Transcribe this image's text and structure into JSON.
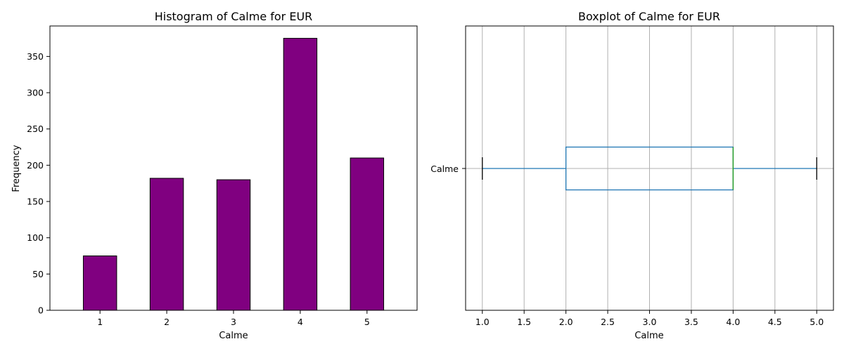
{
  "chart_data": [
    {
      "type": "bar",
      "title": "Histogram of Calme for EUR",
      "xlabel": "Calme",
      "ylabel": "Frequency",
      "categories": [
        "1",
        "2",
        "3",
        "4",
        "5"
      ],
      "values": [
        75,
        182,
        180,
        375,
        210
      ],
      "ylim": [
        0,
        392
      ],
      "yticks": [
        0,
        50,
        100,
        150,
        200,
        250,
        300,
        350
      ],
      "bar_color": "#800080",
      "edge_color": "#000000",
      "grid": false
    },
    {
      "type": "boxplot",
      "title": "Boxplot of Calme for EUR",
      "xlabel": "Calme",
      "category": "Calme",
      "stats": {
        "min": 1.0,
        "q1": 2.0,
        "median": 4.0,
        "q3": 4.0,
        "max": 5.0
      },
      "xlim": [
        0.8,
        5.2
      ],
      "xticks": [
        "1.0",
        "1.5",
        "2.0",
        "2.5",
        "3.0",
        "3.5",
        "4.0",
        "4.5",
        "5.0"
      ],
      "box_color": "#1f77b4",
      "median_color": "#2ca02c",
      "grid": true
    }
  ]
}
